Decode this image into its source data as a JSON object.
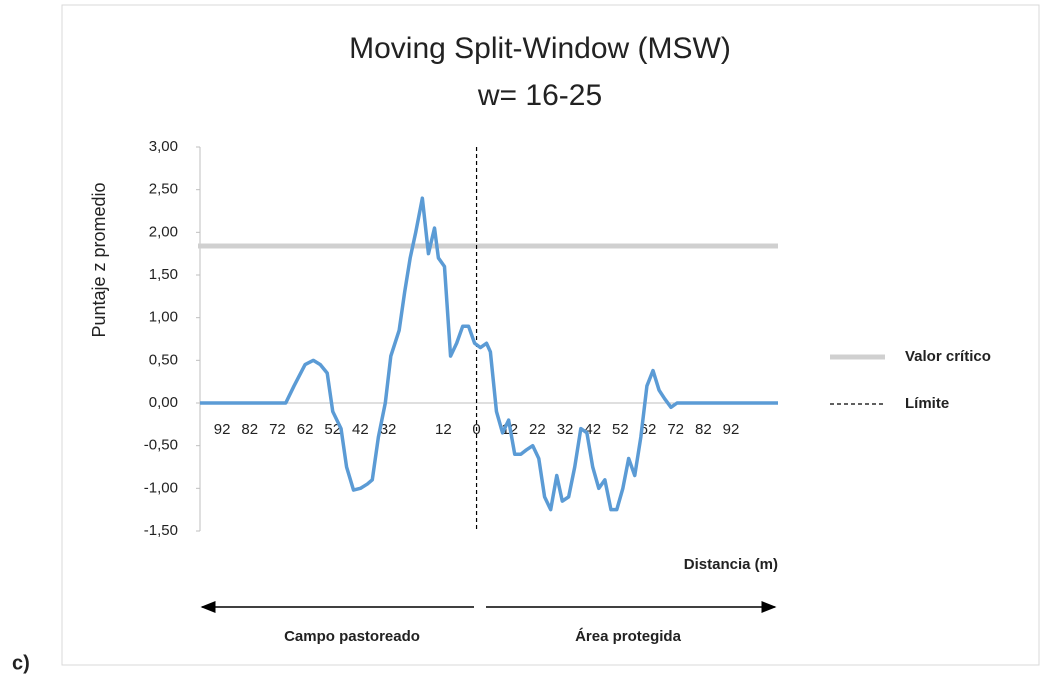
{
  "chart_data": {
    "type": "line",
    "title": "Moving Split-Window (MSW)",
    "subtitle": "w= 16-25",
    "xlabel": "Distancia (m)",
    "ylabel": "Puntaje z promedio",
    "panel_label": "c)",
    "annotations": [
      "Campo pastoreado",
      "Área protegida"
    ],
    "x": [
      -100,
      -69,
      -66,
      -62,
      -59,
      -56.5,
      -54,
      -52,
      -49,
      -47,
      -44.5,
      -42,
      -39.5,
      -37.7,
      -35.5,
      -33,
      -31,
      -28,
      -26,
      -24,
      -22,
      -19.6,
      -17.4,
      -15.2,
      -13.8,
      -11.6,
      -9.4,
      -7.2,
      -5,
      -2.9,
      -0.7,
      1.4,
      3.6,
      5,
      7.2,
      9.4,
      11.6,
      13.8,
      16,
      18,
      20.3,
      22.5,
      24.6,
      26.8,
      29,
      31,
      33.3,
      35.5,
      37.7,
      39.9,
      42,
      44.2,
      46.4,
      48.6,
      50.7,
      52.9,
      55,
      57.2,
      59.4,
      61.6,
      63.8,
      66,
      68,
      70.3,
      72.5,
      109
    ],
    "series": [
      {
        "color": "#5b9bd5",
        "values": [
          0,
          0,
          0.2,
          0.45,
          0.5,
          0.45,
          0.35,
          -0.1,
          -0.3,
          -0.75,
          -1.02,
          -1.0,
          -0.95,
          -0.9,
          -0.4,
          0.0,
          0.55,
          0.85,
          1.3,
          1.7,
          2.0,
          2.4,
          1.75,
          2.05,
          1.7,
          1.6,
          0.55,
          0.7,
          0.9,
          0.9,
          0.7,
          0.65,
          0.7,
          0.6,
          -0.1,
          -0.35,
          -0.2,
          -0.6,
          -0.6,
          -0.55,
          -0.5,
          -0.65,
          -1.1,
          -1.25,
          -0.85,
          -1.15,
          -1.1,
          -0.75,
          -0.3,
          -0.35,
          -0.75,
          -1.0,
          -0.9,
          -1.25,
          -1.25,
          -1.0,
          -0.65,
          -0.85,
          -0.4,
          0.2,
          0.38,
          0.15,
          0.05,
          -0.05,
          0,
          0
        ]
      }
    ],
    "reference_lines": [
      {
        "name": "Valor crítico",
        "axis": "y",
        "value": 1.84,
        "color": "#d0d0d0",
        "style": "solid"
      },
      {
        "name": "Límite",
        "axis": "x",
        "value": 0,
        "color": "#000000",
        "style": "dashed"
      }
    ],
    "xlim": [
      -100,
      109
    ],
    "ylim": [
      -1.5,
      3
    ],
    "yticks": [
      {
        "value": 3,
        "label": "3,00"
      },
      {
        "value": 2.5,
        "label": "2,50"
      },
      {
        "value": 2,
        "label": "2,00"
      },
      {
        "value": 1.5,
        "label": "1,50"
      },
      {
        "value": 1,
        "label": "1,00"
      },
      {
        "value": 0.5,
        "label": "0,50"
      },
      {
        "value": 0,
        "label": "0,00"
      },
      {
        "value": -0.5,
        "label": "-0,50"
      },
      {
        "value": -1,
        "label": "-1,00"
      },
      {
        "value": -1.5,
        "label": "-1,50"
      }
    ],
    "xticks": [
      {
        "value": -92,
        "label": "92"
      },
      {
        "value": -82,
        "label": "82"
      },
      {
        "value": -72,
        "label": "72"
      },
      {
        "value": -62,
        "label": "62"
      },
      {
        "value": -52,
        "label": "52"
      },
      {
        "value": -42,
        "label": "42"
      },
      {
        "value": -32,
        "label": "32"
      },
      {
        "value": -12,
        "label": "12"
      },
      0,
      12,
      22,
      32,
      42,
      52,
      62,
      72,
      82,
      92
    ],
    "grid": false
  }
}
